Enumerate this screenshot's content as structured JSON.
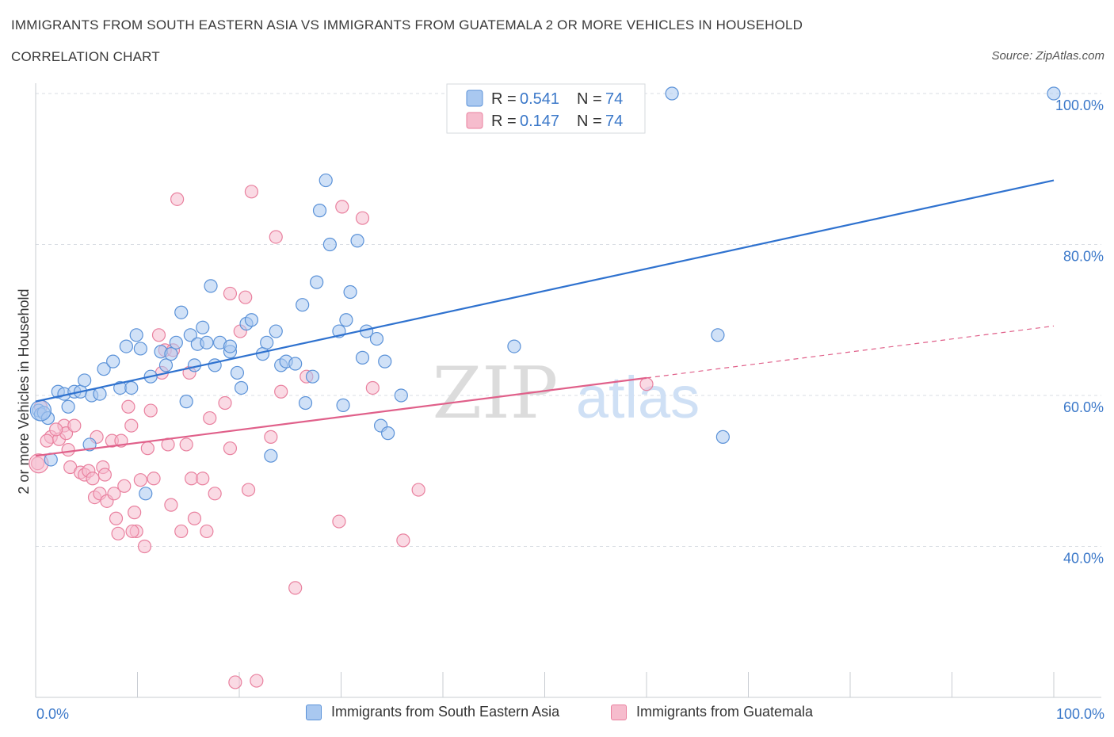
{
  "title": "IMMIGRANTS FROM SOUTH EASTERN ASIA VS IMMIGRANTS FROM GUATEMALA 2 OR MORE VEHICLES IN HOUSEHOLD",
  "subtitle": "CORRELATION CHART",
  "source": "Source: ZipAtlas.com",
  "watermark": {
    "zip": "ZIP",
    "atlas": "atlas"
  },
  "colors": {
    "blue_fill": "#a9c8f0",
    "blue_stroke": "#5b92d8",
    "blue_line": "#2f72cf",
    "pink_fill": "#f6bccd",
    "pink_stroke": "#e9819f",
    "pink_line": "#e0608a",
    "axis_text": "#3b78c9",
    "grid": "#d9dde3"
  },
  "legend_top": {
    "rows": [
      {
        "r_label": "R = ",
        "r_value": "0.541",
        "n_label": "N = ",
        "n_value": "74"
      },
      {
        "r_label": "R = ",
        "r_value": "0.147",
        "n_label": "N = ",
        "n_value": "74"
      }
    ]
  },
  "legend_bottom": {
    "items": [
      "Immigrants from South Eastern Asia",
      "Immigrants from Guatemala"
    ]
  },
  "x_axis_labels": {
    "min": "0.0%",
    "max": "100.0%"
  },
  "chart_data": {
    "type": "scatter",
    "title": "IMMIGRANTS FROM SOUTH EASTERN ASIA VS IMMIGRANTS FROM GUATEMALA 2 OR MORE VEHICLES IN HOUSEHOLD",
    "xlabel": "",
    "ylabel": "2 or more Vehicles in Household",
    "xlim": [
      0,
      100
    ],
    "ylim": [
      20,
      100
    ],
    "y_ticks": [
      40,
      60,
      80,
      100
    ],
    "y_tick_labels": [
      "40.0%",
      "60.0%",
      "80.0%",
      "100.0%"
    ],
    "grid": true,
    "series": [
      {
        "name": "Immigrants from South Eastern Asia",
        "color": "#5b92d8",
        "trend": {
          "x": [
            0,
            100
          ],
          "y": [
            59.2,
            88.5
          ],
          "style": "solid"
        },
        "points": [
          [
            0.3,
            58
          ],
          [
            0.5,
            57.5
          ],
          [
            0.8,
            57.7
          ],
          [
            1.2,
            57
          ],
          [
            1.5,
            51.5
          ],
          [
            2.2,
            60.5
          ],
          [
            2.8,
            60.2
          ],
          [
            3.2,
            58.5
          ],
          [
            3.8,
            60.5
          ],
          [
            4.4,
            60.5
          ],
          [
            4.8,
            62
          ],
          [
            5.5,
            60
          ],
          [
            5.3,
            53.5
          ],
          [
            6.3,
            60.2
          ],
          [
            6.7,
            63.5
          ],
          [
            7.6,
            64.5
          ],
          [
            8.3,
            61
          ],
          [
            8.9,
            66.5
          ],
          [
            9.4,
            61
          ],
          [
            9.9,
            68
          ],
          [
            10.3,
            66.2
          ],
          [
            10.8,
            47
          ],
          [
            11.3,
            62.5
          ],
          [
            12.3,
            65.8
          ],
          [
            12.8,
            64
          ],
          [
            13.3,
            65.5
          ],
          [
            13.8,
            67
          ],
          [
            14.3,
            71
          ],
          [
            14.8,
            59.2
          ],
          [
            15.2,
            68
          ],
          [
            15.6,
            64
          ],
          [
            15.9,
            66.8
          ],
          [
            16.4,
            69
          ],
          [
            16.8,
            67
          ],
          [
            17.2,
            74.5
          ],
          [
            17.6,
            64
          ],
          [
            18.1,
            67
          ],
          [
            19.1,
            65.8
          ],
          [
            19.1,
            66.5
          ],
          [
            19.8,
            63
          ],
          [
            20.2,
            61
          ],
          [
            20.7,
            69.5
          ],
          [
            21.2,
            70
          ],
          [
            22.3,
            65.5
          ],
          [
            22.7,
            67
          ],
          [
            23.1,
            52
          ],
          [
            23.6,
            68.5
          ],
          [
            24.1,
            64
          ],
          [
            24.6,
            64.5
          ],
          [
            25.5,
            64.2
          ],
          [
            26.2,
            72
          ],
          [
            26.5,
            59
          ],
          [
            27.2,
            62.5
          ],
          [
            27.6,
            75
          ],
          [
            27.9,
            84.5
          ],
          [
            28.5,
            88.5
          ],
          [
            28.9,
            80
          ],
          [
            29.8,
            68.5
          ],
          [
            30.2,
            58.7
          ],
          [
            30.5,
            70
          ],
          [
            30.9,
            73.7
          ],
          [
            31.6,
            80.5
          ],
          [
            32.1,
            65
          ],
          [
            32.5,
            68.5
          ],
          [
            33.5,
            67.5
          ],
          [
            33.9,
            56
          ],
          [
            34.3,
            64.5
          ],
          [
            34.6,
            55
          ],
          [
            35.9,
            60
          ],
          [
            47,
            66.5
          ],
          [
            62.5,
            100
          ],
          [
            67,
            68
          ],
          [
            67.5,
            54.5
          ],
          [
            100,
            100
          ]
        ]
      },
      {
        "name": "Immigrants from Guatemala",
        "color": "#e9819f",
        "trend": {
          "x": [
            0,
            100
          ],
          "y": [
            52,
            69.2
          ],
          "style": "solid-then-dashed",
          "solid_until_x": 60
        },
        "points": [
          [
            0.2,
            51
          ],
          [
            0.5,
            58.5
          ],
          [
            1.5,
            54.5
          ],
          [
            2.3,
            54.2
          ],
          [
            2.8,
            56
          ],
          [
            3,
            55
          ],
          [
            3.2,
            52.8
          ],
          [
            3.4,
            50.5
          ],
          [
            3.8,
            56
          ],
          [
            4.4,
            49.8
          ],
          [
            4.8,
            49.5
          ],
          [
            5.2,
            50
          ],
          [
            5.8,
            46.5
          ],
          [
            6,
            54.5
          ],
          [
            6.3,
            47
          ],
          [
            6.6,
            50.5
          ],
          [
            6.8,
            49.5
          ],
          [
            7,
            46
          ],
          [
            7.5,
            54
          ],
          [
            7.7,
            47
          ],
          [
            7.9,
            43.7
          ],
          [
            8.1,
            41.7
          ],
          [
            8.4,
            54
          ],
          [
            8.7,
            48
          ],
          [
            9.1,
            58.5
          ],
          [
            9.4,
            56
          ],
          [
            9.7,
            44.5
          ],
          [
            9.9,
            42
          ],
          [
            10.3,
            48.8
          ],
          [
            10.7,
            40
          ],
          [
            11,
            53
          ],
          [
            11.3,
            58
          ],
          [
            11.6,
            49
          ],
          [
            12.1,
            68
          ],
          [
            12.4,
            63
          ],
          [
            12.7,
            66
          ],
          [
            13,
            53.5
          ],
          [
            13.3,
            45.5
          ],
          [
            13.5,
            66
          ],
          [
            13.9,
            86
          ],
          [
            14.3,
            42
          ],
          [
            14.8,
            53.5
          ],
          [
            15.1,
            63
          ],
          [
            15.3,
            49
          ],
          [
            15.6,
            43.7
          ],
          [
            16.4,
            49
          ],
          [
            16.8,
            42
          ],
          [
            17.1,
            57
          ],
          [
            17.6,
            47
          ],
          [
            18.6,
            59
          ],
          [
            19.1,
            73.5
          ],
          [
            19.1,
            53
          ],
          [
            19.6,
            22
          ],
          [
            20.1,
            68.5
          ],
          [
            20.6,
            73
          ],
          [
            20.9,
            47.5
          ],
          [
            21.2,
            87
          ],
          [
            21.7,
            22.2
          ],
          [
            23.1,
            54.5
          ],
          [
            23.6,
            81
          ],
          [
            24.1,
            60.5
          ],
          [
            25.5,
            34.5
          ],
          [
            26.6,
            62.5
          ],
          [
            29.8,
            43.3
          ],
          [
            30.1,
            85
          ],
          [
            32.1,
            83.5
          ],
          [
            33.1,
            61
          ],
          [
            36.1,
            40.8
          ],
          [
            37.6,
            47.5
          ],
          [
            60,
            61.5
          ],
          [
            1.1,
            54
          ],
          [
            2,
            55.5
          ],
          [
            5.6,
            49
          ],
          [
            9.5,
            42
          ]
        ]
      }
    ]
  }
}
